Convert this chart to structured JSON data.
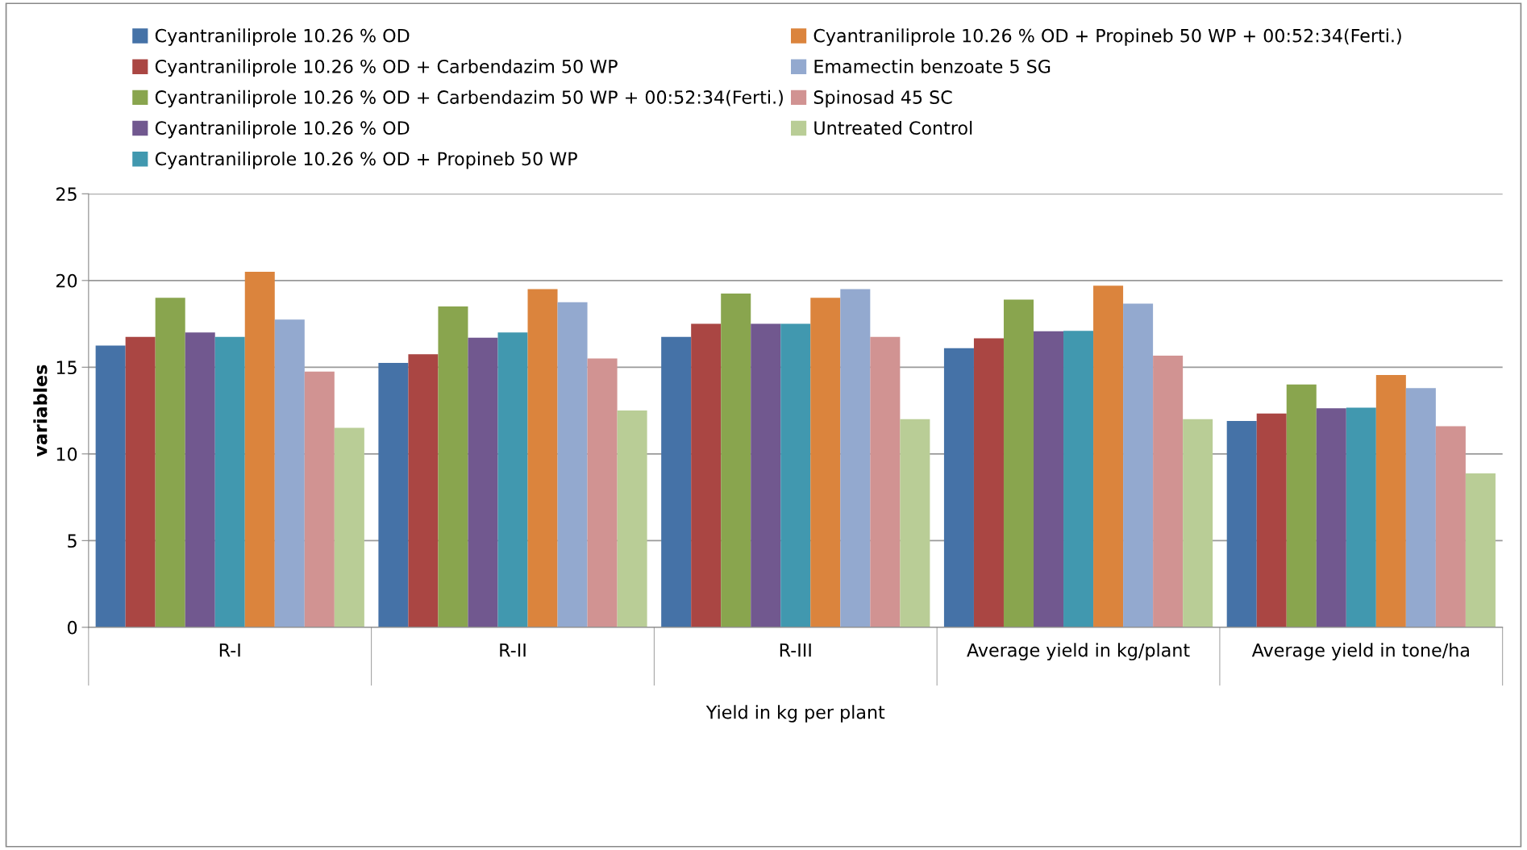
{
  "chart_data": {
    "type": "bar",
    "xlabel": "Yield in kg per plant",
    "ylabel": "variables",
    "categories": [
      "R-I",
      "R-II",
      "R-III",
      "Average yield in kg/plant",
      "Average yield in tone/ha"
    ],
    "series": [
      {
        "name": "Cyantraniliprole 10.26 % OD",
        "color": "#4572a7",
        "values": [
          16.25,
          15.25,
          16.75,
          16.1,
          11.9
        ]
      },
      {
        "name": "Cyantraniliprole 10.26 % OD + Carbendazim 50 WP",
        "color": "#aa4643",
        "values": [
          16.75,
          15.75,
          17.5,
          16.67,
          12.33
        ]
      },
      {
        "name": "Cyantraniliprole 10.26 % OD + Carbendazim 50 WP + 00:52:34(Ferti.)",
        "color": "#89a54e",
        "values": [
          19,
          18.5,
          19.25,
          18.9,
          14
        ]
      },
      {
        "name": "Cyantraniliprole 10.26 % OD",
        "color": "#71588f",
        "values": [
          17,
          16.7,
          17.5,
          17.07,
          12.63
        ]
      },
      {
        "name": "Cyantraniliprole 10.26 % OD + Propineb 50 WP",
        "color": "#4198af",
        "values": [
          16.75,
          17,
          17.5,
          17.1,
          12.67
        ]
      },
      {
        "name": "Cyantraniliprole 10.26 % OD + Propineb 50 WP + 00:52:34(Ferti.)",
        "color": "#db843d",
        "values": [
          20.5,
          19.5,
          19,
          19.7,
          14.55
        ]
      },
      {
        "name": "Emamectin benzoate 5 SG",
        "color": "#93a9cf",
        "values": [
          17.75,
          18.75,
          19.5,
          18.67,
          13.8
        ]
      },
      {
        "name": "Spinosad 45 SC",
        "color": "#d19392",
        "values": [
          14.75,
          15.5,
          16.75,
          15.67,
          11.6
        ]
      },
      {
        "name": "Untreated Control",
        "color": "#b9cd96",
        "values": [
          11.5,
          12.5,
          12,
          12,
          8.88
        ]
      }
    ],
    "ylim": [
      0,
      25
    ],
    "yticks": [
      0,
      5,
      10,
      15,
      20,
      25
    ],
    "grid": "y",
    "legend": "top"
  }
}
